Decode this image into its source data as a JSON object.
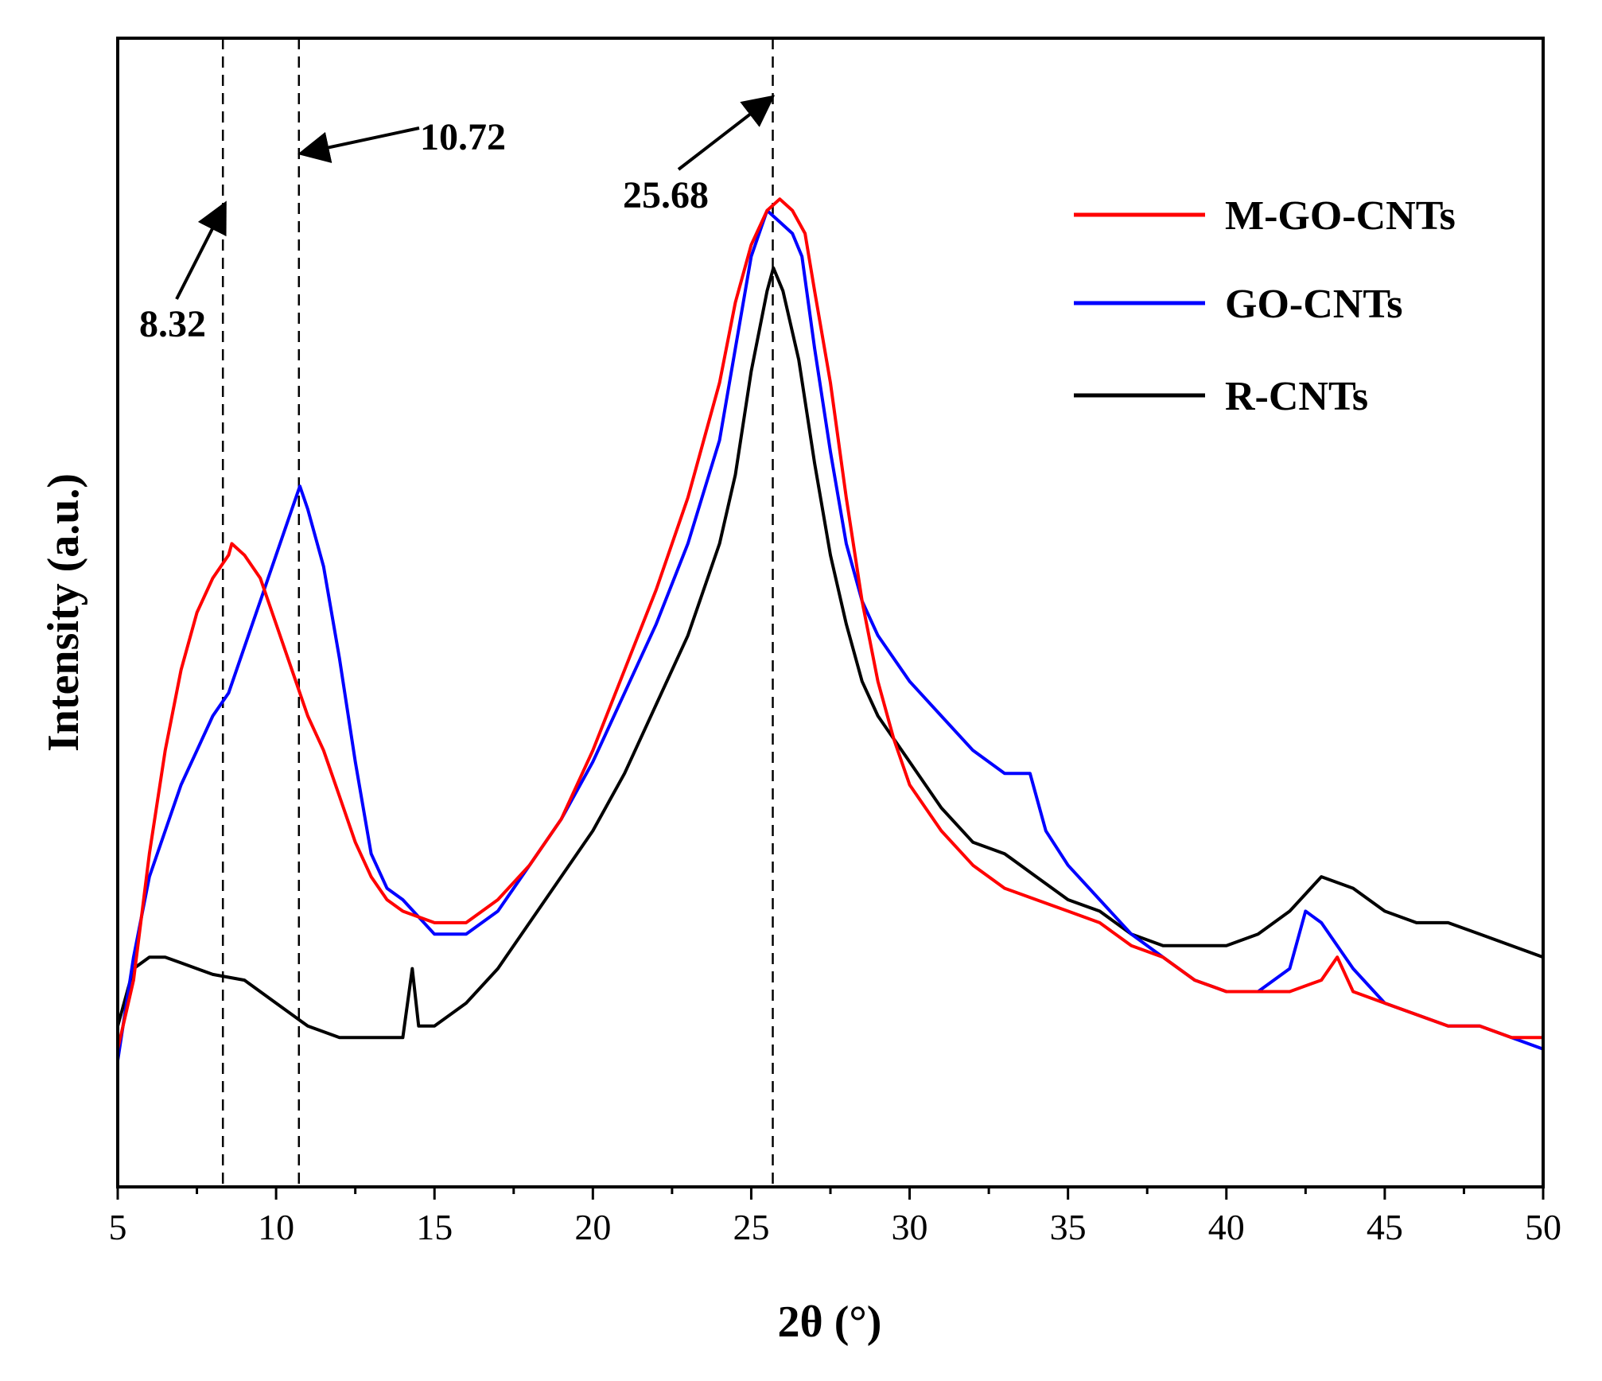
{
  "chart_data": {
    "type": "line",
    "title": "",
    "xlabel": "2θ (°)",
    "ylabel": "Intensity (a.u.)",
    "xlim": [
      5,
      50
    ],
    "ylim": [
      0,
      100
    ],
    "x_ticks": [
      5,
      10,
      15,
      20,
      25,
      30,
      35,
      40,
      45,
      50
    ],
    "x_tick_labels": [
      "5",
      "10",
      "15",
      "20",
      "25",
      "30",
      "35",
      "40",
      "45",
      "50"
    ],
    "y_ticks_shown": false,
    "grid": false,
    "legend_position": "top-right",
    "series": [
      {
        "name": "M-GO-CNTs",
        "color": "#ff0000",
        "points": [
          [
            5,
            12
          ],
          [
            5.5,
            18
          ],
          [
            6,
            29
          ],
          [
            6.5,
            38
          ],
          [
            7,
            45
          ],
          [
            7.5,
            50
          ],
          [
            8,
            53
          ],
          [
            8.5,
            55
          ],
          [
            8.6,
            56
          ],
          [
            9,
            55
          ],
          [
            9.5,
            53
          ],
          [
            10,
            49
          ],
          [
            10.5,
            45
          ],
          [
            11,
            41
          ],
          [
            11.5,
            38
          ],
          [
            12,
            34
          ],
          [
            12.5,
            30
          ],
          [
            13,
            27
          ],
          [
            13.5,
            25
          ],
          [
            14,
            24
          ],
          [
            15,
            23
          ],
          [
            16,
            23
          ],
          [
            17,
            25
          ],
          [
            18,
            28
          ],
          [
            19,
            32
          ],
          [
            20,
            38
          ],
          [
            21,
            45
          ],
          [
            22,
            52
          ],
          [
            23,
            60
          ],
          [
            24,
            70
          ],
          [
            24.5,
            77
          ],
          [
            25,
            82
          ],
          [
            25.5,
            85
          ],
          [
            25.9,
            86
          ],
          [
            26.3,
            85
          ],
          [
            26.7,
            83
          ],
          [
            27,
            78
          ],
          [
            27.5,
            70
          ],
          [
            28,
            60
          ],
          [
            28.5,
            51
          ],
          [
            29,
            44
          ],
          [
            29.5,
            39
          ],
          [
            30,
            35
          ],
          [
            31,
            31
          ],
          [
            32,
            28
          ],
          [
            33,
            26
          ],
          [
            34,
            25
          ],
          [
            35,
            24
          ],
          [
            36,
            23
          ],
          [
            37,
            21
          ],
          [
            38,
            20
          ],
          [
            39,
            18
          ],
          [
            40,
            17
          ],
          [
            41,
            17
          ],
          [
            42,
            17
          ],
          [
            43,
            18
          ],
          [
            43.5,
            20
          ],
          [
            44,
            17
          ],
          [
            45,
            16
          ],
          [
            46,
            15
          ],
          [
            47,
            14
          ],
          [
            48,
            14
          ],
          [
            49,
            13
          ],
          [
            50,
            13
          ]
        ]
      },
      {
        "name": "GO-CNTs",
        "color": "#0000ff",
        "points": [
          [
            5,
            11
          ],
          [
            5.5,
            20
          ],
          [
            6,
            27
          ],
          [
            6.5,
            31
          ],
          [
            7,
            35
          ],
          [
            7.5,
            38
          ],
          [
            8,
            41
          ],
          [
            8.5,
            43
          ],
          [
            9,
            47
          ],
          [
            9.5,
            51
          ],
          [
            10,
            55
          ],
          [
            10.5,
            59
          ],
          [
            10.75,
            61
          ],
          [
            11,
            59
          ],
          [
            11.5,
            54
          ],
          [
            12,
            46
          ],
          [
            12.5,
            37
          ],
          [
            13,
            29
          ],
          [
            13.5,
            26
          ],
          [
            14,
            25
          ],
          [
            15,
            22
          ],
          [
            16,
            22
          ],
          [
            17,
            24
          ],
          [
            18,
            28
          ],
          [
            19,
            32
          ],
          [
            20,
            37
          ],
          [
            21,
            43
          ],
          [
            22,
            49
          ],
          [
            23,
            56
          ],
          [
            24,
            65
          ],
          [
            24.5,
            73
          ],
          [
            25,
            81
          ],
          [
            25.5,
            85
          ],
          [
            25.9,
            84
          ],
          [
            26.3,
            83
          ],
          [
            26.6,
            81
          ],
          [
            27,
            73
          ],
          [
            27.5,
            64
          ],
          [
            28,
            56
          ],
          [
            28.5,
            51
          ],
          [
            29,
            48
          ],
          [
            30,
            44
          ],
          [
            31,
            41
          ],
          [
            32,
            38
          ],
          [
            33,
            36
          ],
          [
            33.8,
            36
          ],
          [
            34.3,
            31
          ],
          [
            35,
            28
          ],
          [
            36,
            25
          ],
          [
            37,
            22
          ],
          [
            38,
            20
          ],
          [
            39,
            18
          ],
          [
            40,
            17
          ],
          [
            41,
            17
          ],
          [
            42,
            19
          ],
          [
            42.5,
            24
          ],
          [
            43,
            23
          ],
          [
            44,
            19
          ],
          [
            45,
            16
          ],
          [
            46,
            15
          ],
          [
            47,
            14
          ],
          [
            48,
            14
          ],
          [
            49,
            13
          ],
          [
            50,
            12
          ]
        ]
      },
      {
        "name": "R-CNTs",
        "color": "#000000",
        "points": [
          [
            5,
            14
          ],
          [
            5.5,
            19
          ],
          [
            6,
            20
          ],
          [
            6.5,
            20
          ],
          [
            7,
            19.5
          ],
          [
            8,
            18.5
          ],
          [
            9,
            18
          ],
          [
            10,
            16
          ],
          [
            11,
            14
          ],
          [
            12,
            13
          ],
          [
            13,
            13
          ],
          [
            14,
            13
          ],
          [
            14.3,
            19
          ],
          [
            14.5,
            14
          ],
          [
            15,
            14
          ],
          [
            16,
            16
          ],
          [
            17,
            19
          ],
          [
            18,
            23
          ],
          [
            19,
            27
          ],
          [
            20,
            31
          ],
          [
            21,
            36
          ],
          [
            22,
            42
          ],
          [
            23,
            48
          ],
          [
            24,
            56
          ],
          [
            24.5,
            62
          ],
          [
            25,
            71
          ],
          [
            25.5,
            78
          ],
          [
            25.7,
            80
          ],
          [
            26,
            78
          ],
          [
            26.5,
            72
          ],
          [
            27,
            63
          ],
          [
            27.5,
            55
          ],
          [
            28,
            49
          ],
          [
            28.5,
            44
          ],
          [
            29,
            41
          ],
          [
            30,
            37
          ],
          [
            31,
            33
          ],
          [
            32,
            30
          ],
          [
            33,
            29
          ],
          [
            34,
            27
          ],
          [
            35,
            25
          ],
          [
            36,
            24
          ],
          [
            37,
            22
          ],
          [
            38,
            21
          ],
          [
            39,
            21
          ],
          [
            40,
            21
          ],
          [
            41,
            22
          ],
          [
            42,
            24
          ],
          [
            43,
            27
          ],
          [
            44,
            26
          ],
          [
            45,
            24
          ],
          [
            46,
            23
          ],
          [
            47,
            23
          ],
          [
            48,
            22
          ],
          [
            49,
            21
          ],
          [
            50,
            20
          ]
        ]
      }
    ],
    "reference_lines": [
      8.32,
      10.72,
      25.68
    ],
    "annotations": [
      {
        "text": "8.32",
        "x": 8.32
      },
      {
        "text": "10.72",
        "x": 10.72
      },
      {
        "text": "25.68",
        "x": 25.68
      }
    ]
  }
}
